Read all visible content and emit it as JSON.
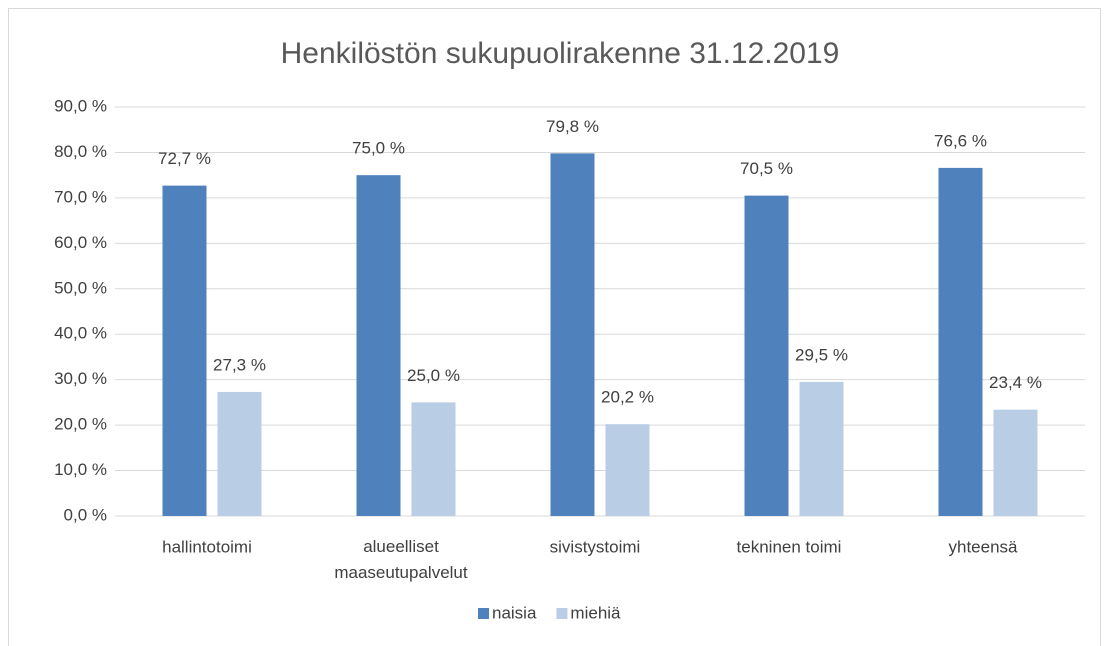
{
  "chart_data": {
    "type": "bar",
    "title": "Henkilöstön sukupuolirakenne 31.12.2019",
    "categories": [
      "hallintotoimi",
      "alueelliset maaseutupalvelut",
      "sivistystoimi",
      "tekninen toimi",
      "yhteensä"
    ],
    "series": [
      {
        "name": "naisia",
        "color": "#4f81bd",
        "values": [
          72.7,
          75.0,
          79.8,
          70.5,
          76.6
        ],
        "value_labels": [
          "72,7 %",
          "75,0 %",
          "79,8 %",
          "70,5 %",
          "76,6 %"
        ]
      },
      {
        "name": "miehiä",
        "color": "#b9cde5",
        "values": [
          27.3,
          25.0,
          20.2,
          29.5,
          23.4
        ],
        "value_labels": [
          "27,3 %",
          "25,0 %",
          "20,2 %",
          "29,5 %",
          "23,4 %"
        ]
      }
    ],
    "ylim": [
      0,
      90
    ],
    "yticks": [
      {
        "value": 0,
        "label": "0,0 %"
      },
      {
        "value": 10,
        "label": "10,0 %"
      },
      {
        "value": 20,
        "label": "20,0 %"
      },
      {
        "value": 30,
        "label": "30,0 %"
      },
      {
        "value": 40,
        "label": "40,0 %"
      },
      {
        "value": 50,
        "label": "50,0 %"
      },
      {
        "value": 60,
        "label": "60,0 %"
      },
      {
        "value": 70,
        "label": "70,0 %"
      },
      {
        "value": 80,
        "label": "80,0 %"
      },
      {
        "value": 90,
        "label": "90,0 %"
      }
    ],
    "grid": true,
    "legend": "bottom"
  }
}
